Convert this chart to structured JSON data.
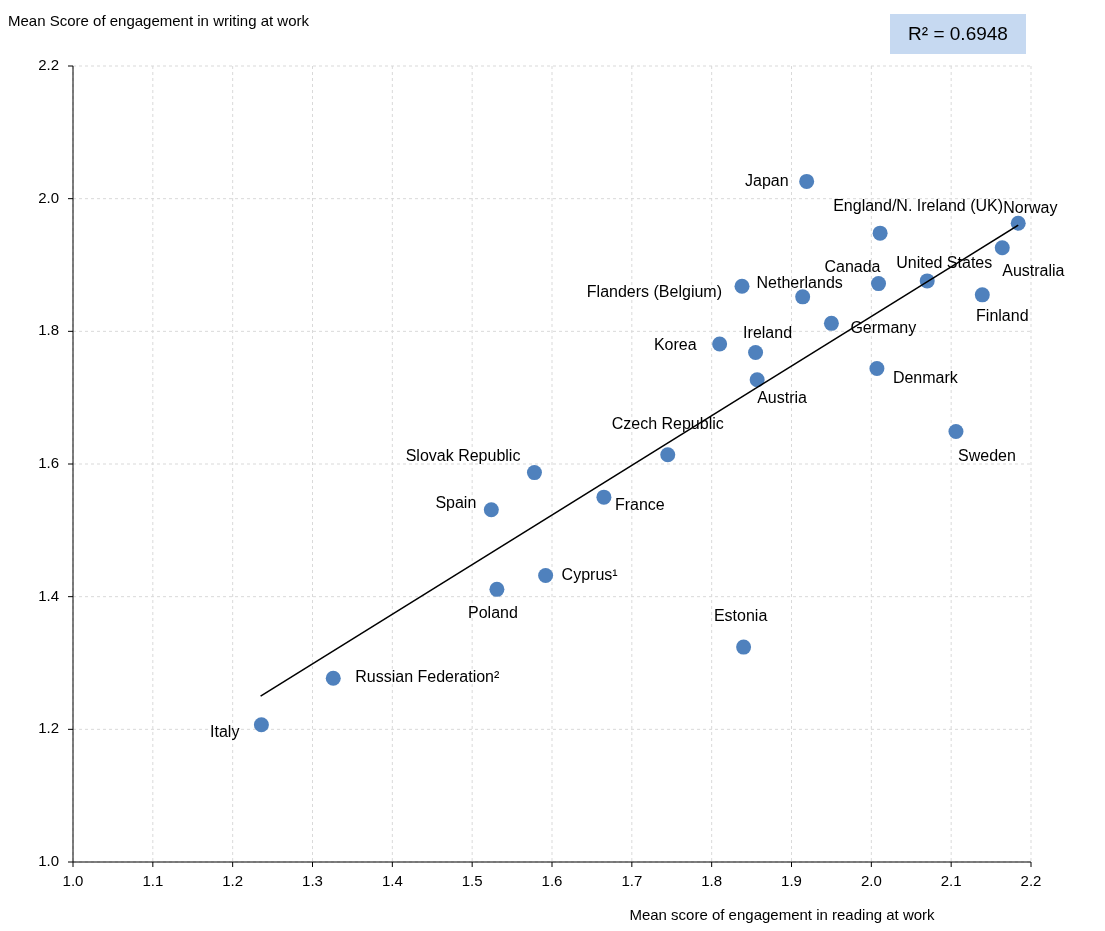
{
  "chart_data": {
    "type": "scatter",
    "ylabel": "Mean Score of engagement in writing at work",
    "xlabel": "Mean score of engagement in reading at work",
    "xlim": [
      1.0,
      2.2
    ],
    "ylim": [
      1.0,
      2.2
    ],
    "xticks": [
      {
        "value": 1.0,
        "label": "1.0"
      },
      {
        "value": 1.1,
        "label": "1.1"
      },
      {
        "value": 1.2,
        "label": "1.2"
      },
      {
        "value": 1.3,
        "label": "1.3"
      },
      {
        "value": 1.4,
        "label": "1.4"
      },
      {
        "value": 1.5,
        "label": "1.5"
      },
      {
        "value": 1.6,
        "label": "1.6"
      },
      {
        "value": 1.7,
        "label": "1.7"
      },
      {
        "value": 1.8,
        "label": "1.8"
      },
      {
        "value": 1.9,
        "label": "1.9"
      },
      {
        "value": 2.0,
        "label": "2.0"
      },
      {
        "value": 2.1,
        "label": "2.1"
      },
      {
        "value": 2.2,
        "label": "2.2"
      }
    ],
    "yticks": [
      {
        "value": 1.0,
        "label": "1.0"
      },
      {
        "value": 1.2,
        "label": "1.2"
      },
      {
        "value": 1.4,
        "label": "1.4"
      },
      {
        "value": 1.6,
        "label": "1.6"
      },
      {
        "value": 1.8,
        "label": "1.8"
      },
      {
        "value": 2.0,
        "label": "2.0"
      },
      {
        "value": 2.2,
        "label": "2.2"
      }
    ],
    "grid": true,
    "series": [
      {
        "color": "#4f81bd",
        "marker": "circle",
        "x": [
          1.919,
          2.011,
          2.184,
          2.164,
          2.07,
          2.009,
          1.914,
          1.838,
          2.139,
          1.95,
          1.81,
          1.855,
          1.857,
          2.007,
          2.106,
          1.745,
          1.578,
          1.524,
          1.665,
          1.592,
          1.531,
          1.84,
          1.326,
          1.236
        ],
        "values": [
          2.026,
          1.948,
          1.963,
          1.926,
          1.876,
          1.872,
          1.852,
          1.868,
          1.855,
          1.812,
          1.781,
          1.768,
          1.727,
          1.744,
          1.649,
          1.614,
          1.587,
          1.531,
          1.55,
          1.432,
          1.411,
          1.324,
          1.277,
          1.207
        ]
      },
      {
        "type": "line",
        "color": "#000000",
        "line_style": "solid",
        "marker": "none",
        "x": [
          1.235,
          2.184
        ],
        "values": [
          1.25,
          1.96
        ]
      }
    ],
    "annotations": [
      "R² = 0.6948",
      {
        "text": "Japan",
        "x": 1.919,
        "y": 2.026
      },
      {
        "text": "England/N. Ireland (UK)",
        "x": 2.011,
        "y": 1.948
      },
      {
        "text": "Norway",
        "x": 2.184,
        "y": 1.963
      },
      {
        "text": "Australia",
        "x": 2.164,
        "y": 1.926
      },
      {
        "text": "United States",
        "x": 2.07,
        "y": 1.876
      },
      {
        "text": "Canada",
        "x": 2.009,
        "y": 1.872
      },
      {
        "text": "Netherlands",
        "x": 1.914,
        "y": 1.852
      },
      {
        "text": "Flanders (Belgium)",
        "x": 1.838,
        "y": 1.868
      },
      {
        "text": "Finland",
        "x": 2.139,
        "y": 1.855
      },
      {
        "text": "Germany",
        "x": 1.95,
        "y": 1.812
      },
      {
        "text": "Korea",
        "x": 1.81,
        "y": 1.781
      },
      {
        "text": "Ireland",
        "x": 1.855,
        "y": 1.768
      },
      {
        "text": "Austria",
        "x": 1.857,
        "y": 1.727
      },
      {
        "text": "Denmark",
        "x": 2.007,
        "y": 1.744
      },
      {
        "text": "Sweden",
        "x": 2.106,
        "y": 1.649
      },
      {
        "text": "Czech Republic",
        "x": 1.745,
        "y": 1.614
      },
      {
        "text": "Slovak Republic",
        "x": 1.578,
        "y": 1.587
      },
      {
        "text": "Spain",
        "x": 1.524,
        "y": 1.531
      },
      {
        "text": "France",
        "x": 1.665,
        "y": 1.55
      },
      {
        "text": "Cyprus¹",
        "x": 1.592,
        "y": 1.432
      },
      {
        "text": "Poland",
        "x": 1.531,
        "y": 1.411
      },
      {
        "text": "Estonia",
        "x": 1.84,
        "y": 1.324
      },
      {
        "text": "Russian Federation²",
        "x": 1.326,
        "y": 1.277
      },
      {
        "text": "Italy",
        "x": 1.236,
        "y": 1.207
      }
    ]
  }
}
